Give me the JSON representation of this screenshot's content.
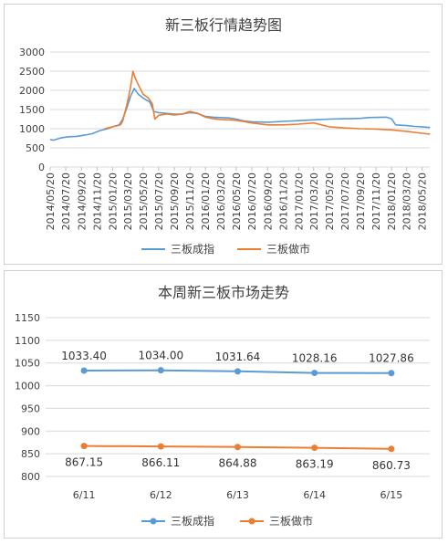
{
  "chart_data": [
    {
      "type": "line",
      "title": "新三板行情趋势图",
      "ylim": [
        0,
        3000
      ],
      "yticks": [
        "0",
        "500",
        "1000",
        "1500",
        "2000",
        "2500",
        "3000"
      ],
      "x_tick_labels": [
        "2014/05/20",
        "2014/07/20",
        "2014/09/20",
        "2014/11/20",
        "2015/01/20",
        "2015/03/20",
        "2015/05/20",
        "2015/07/20",
        "2015/09/20",
        "2015/11/20",
        "2016/01/20",
        "2016/03/20",
        "2016/05/20",
        "2016/07/20",
        "2016/09/20",
        "2016/11/20",
        "2017/01/20",
        "2017/03/20",
        "2017/05/20",
        "2017/07/20",
        "2017/09/20",
        "2017/11/20",
        "2018/01/20",
        "2018/03/20",
        "2018/05/20"
      ],
      "grid": true,
      "legend_position": "bottom",
      "series": [
        {
          "name": "三板成指",
          "color": "#5b9bd5",
          "points": [
            [
              "2014/05/20",
              720
            ],
            [
              "2014/06/01",
              700
            ],
            [
              "2014/07/01",
              760
            ],
            [
              "2014/08/01",
              790
            ],
            [
              "2014/09/01",
              800
            ],
            [
              "2014/10/01",
              830
            ],
            [
              "2014/11/01",
              870
            ],
            [
              "2014/12/01",
              950
            ],
            [
              "2015/01/01",
              1000
            ],
            [
              "2015/01/20",
              1050
            ],
            [
              "2015/02/15",
              1100
            ],
            [
              "2015/03/01",
              1250
            ],
            [
              "2015/03/20",
              1600
            ],
            [
              "2015/04/01",
              1850
            ],
            [
              "2015/04/15",
              2050
            ],
            [
              "2015/05/01",
              1900
            ],
            [
              "2015/05/20",
              1800
            ],
            [
              "2015/06/01",
              1750
            ],
            [
              "2015/06/15",
              1700
            ],
            [
              "2015/07/01",
              1450
            ],
            [
              "2015/07/20",
              1420
            ],
            [
              "2015/08/20",
              1400
            ],
            [
              "2015/09/20",
              1380
            ],
            [
              "2015/10/20",
              1380
            ],
            [
              "2015/11/20",
              1420
            ],
            [
              "2015/12/20",
              1400
            ],
            [
              "2016/01/20",
              1320
            ],
            [
              "2016/02/20",
              1300
            ],
            [
              "2016/03/20",
              1290
            ],
            [
              "2016/04/20",
              1280
            ],
            [
              "2016/05/20",
              1250
            ],
            [
              "2016/06/20",
              1200
            ],
            [
              "2016/07/20",
              1180
            ],
            [
              "2016/09/20",
              1170
            ],
            [
              "2016/11/20",
              1190
            ],
            [
              "2017/01/20",
              1210
            ],
            [
              "2017/03/20",
              1230
            ],
            [
              "2017/05/20",
              1250
            ],
            [
              "2017/07/20",
              1260
            ],
            [
              "2017/09/20",
              1270
            ],
            [
              "2017/10/20",
              1290
            ],
            [
              "2017/12/20",
              1300
            ],
            [
              "2018/01/01",
              1300
            ],
            [
              "2018/01/20",
              1260
            ],
            [
              "2018/02/05",
              1100
            ],
            [
              "2018/03/20",
              1080
            ],
            [
              "2018/04/20",
              1060
            ],
            [
              "2018/05/20",
              1050
            ],
            [
              "2018/06/20",
              1030
            ]
          ]
        },
        {
          "name": "三板做市",
          "color": "#ed7d31",
          "points": [
            [
              "2014/12/20",
              1000
            ],
            [
              "2015/01/20",
              1050
            ],
            [
              "2015/02/20",
              1100
            ],
            [
              "2015/03/01",
              1200
            ],
            [
              "2015/03/20",
              1700
            ],
            [
              "2015/04/01",
              2100
            ],
            [
              "2015/04/10",
              2500
            ],
            [
              "2015/04/20",
              2300
            ],
            [
              "2015/05/01",
              2150
            ],
            [
              "2015/05/20",
              1900
            ],
            [
              "2015/06/10",
              1800
            ],
            [
              "2015/06/25",
              1650
            ],
            [
              "2015/07/05",
              1250
            ],
            [
              "2015/07/20",
              1350
            ],
            [
              "2015/08/20",
              1380
            ],
            [
              "2015/09/20",
              1360
            ],
            [
              "2015/10/20",
              1380
            ],
            [
              "2015/11/20",
              1450
            ],
            [
              "2015/12/20",
              1400
            ],
            [
              "2016/01/20",
              1300
            ],
            [
              "2016/02/20",
              1260
            ],
            [
              "2016/03/20",
              1240
            ],
            [
              "2016/05/20",
              1220
            ],
            [
              "2016/07/20",
              1150
            ],
            [
              "2016/09/20",
              1100
            ],
            [
              "2016/11/20",
              1100
            ],
            [
              "2017/01/20",
              1120
            ],
            [
              "2017/03/20",
              1150
            ],
            [
              "2017/05/20",
              1050
            ],
            [
              "2017/07/20",
              1020
            ],
            [
              "2017/09/20",
              1000
            ],
            [
              "2017/11/20",
              990
            ],
            [
              "2018/01/20",
              970
            ],
            [
              "2018/03/20",
              930
            ],
            [
              "2018/05/20",
              880
            ],
            [
              "2018/06/20",
              860
            ]
          ]
        }
      ]
    },
    {
      "type": "line",
      "title": "本周新三板市场走势",
      "ylim": [
        800,
        1150
      ],
      "yticks": [
        "800",
        "850",
        "900",
        "950",
        "1000",
        "1050",
        "1100",
        "1150"
      ],
      "categories": [
        "6/11",
        "6/12",
        "6/13",
        "6/14",
        "6/15"
      ],
      "grid": true,
      "legend_position": "bottom",
      "series": [
        {
          "name": "三板成指",
          "color": "#5b9bd5",
          "values": [
            1033.4,
            1034.0,
            1031.64,
            1028.16,
            1027.86
          ],
          "labels": [
            "1033.40",
            "1034.00",
            "1031.64",
            "1028.16",
            "1027.86"
          ]
        },
        {
          "name": "三板做市",
          "color": "#ed7d31",
          "values": [
            867.15,
            866.11,
            864.88,
            863.19,
            860.73
          ],
          "labels": [
            "867.15",
            "866.11",
            "864.88",
            "863.19",
            "860.73"
          ]
        }
      ]
    }
  ]
}
